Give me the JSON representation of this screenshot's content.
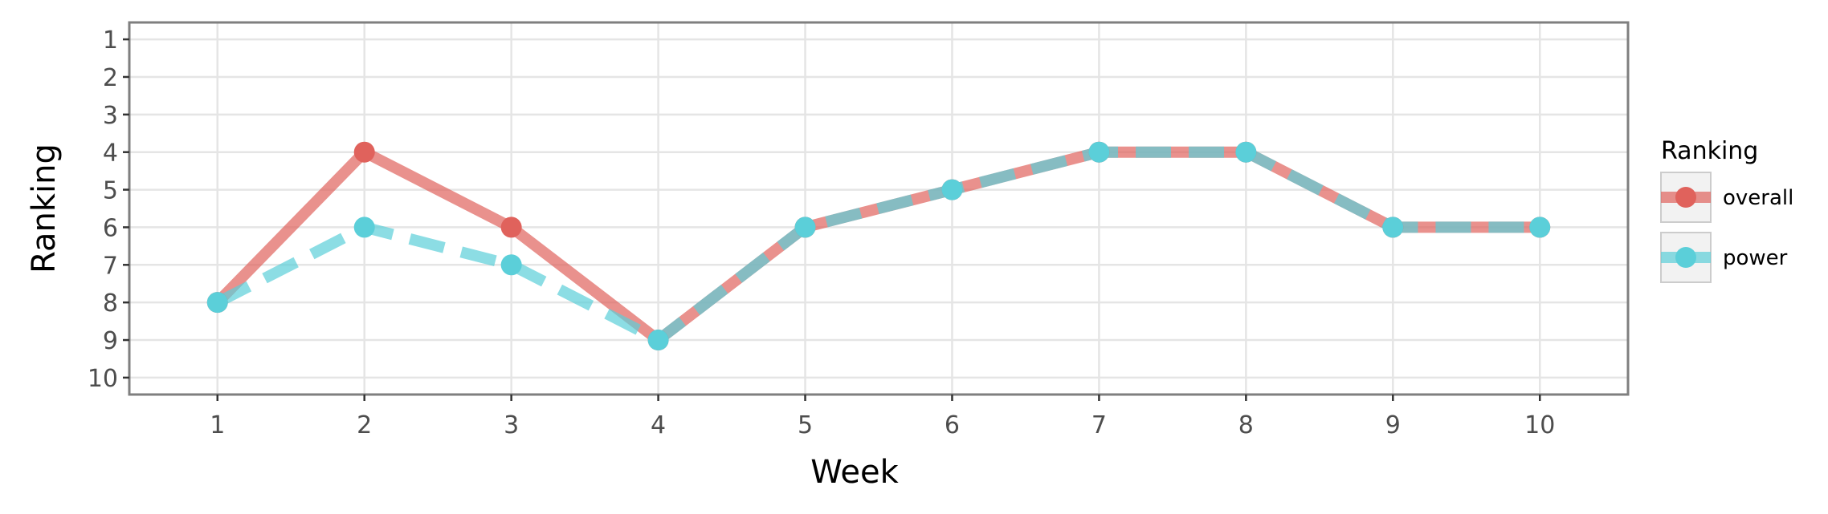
{
  "chart_data": {
    "type": "line",
    "xlabel": "Week",
    "ylabel": "Ranking",
    "x": [
      1,
      2,
      3,
      4,
      5,
      6,
      7,
      8,
      9,
      10
    ],
    "xlim": [
      0.4,
      10.6
    ],
    "ylim": [
      10.45,
      0.55
    ],
    "y_reversed": true,
    "y_ticks": [
      1,
      2,
      3,
      4,
      5,
      6,
      7,
      8,
      9,
      10
    ],
    "grid": true,
    "legend": {
      "title": "Ranking",
      "placement": "right"
    },
    "series": [
      {
        "name": "overall",
        "values": [
          8,
          4,
          6,
          9,
          6,
          5,
          4,
          4,
          6,
          6
        ],
        "color": "#E0625C",
        "dash": "solid"
      },
      {
        "name": "power",
        "values": [
          8,
          6,
          7,
          9,
          6,
          5,
          4,
          4,
          6,
          6
        ],
        "color": "#5BCFD9",
        "dash": "dashed"
      }
    ]
  }
}
